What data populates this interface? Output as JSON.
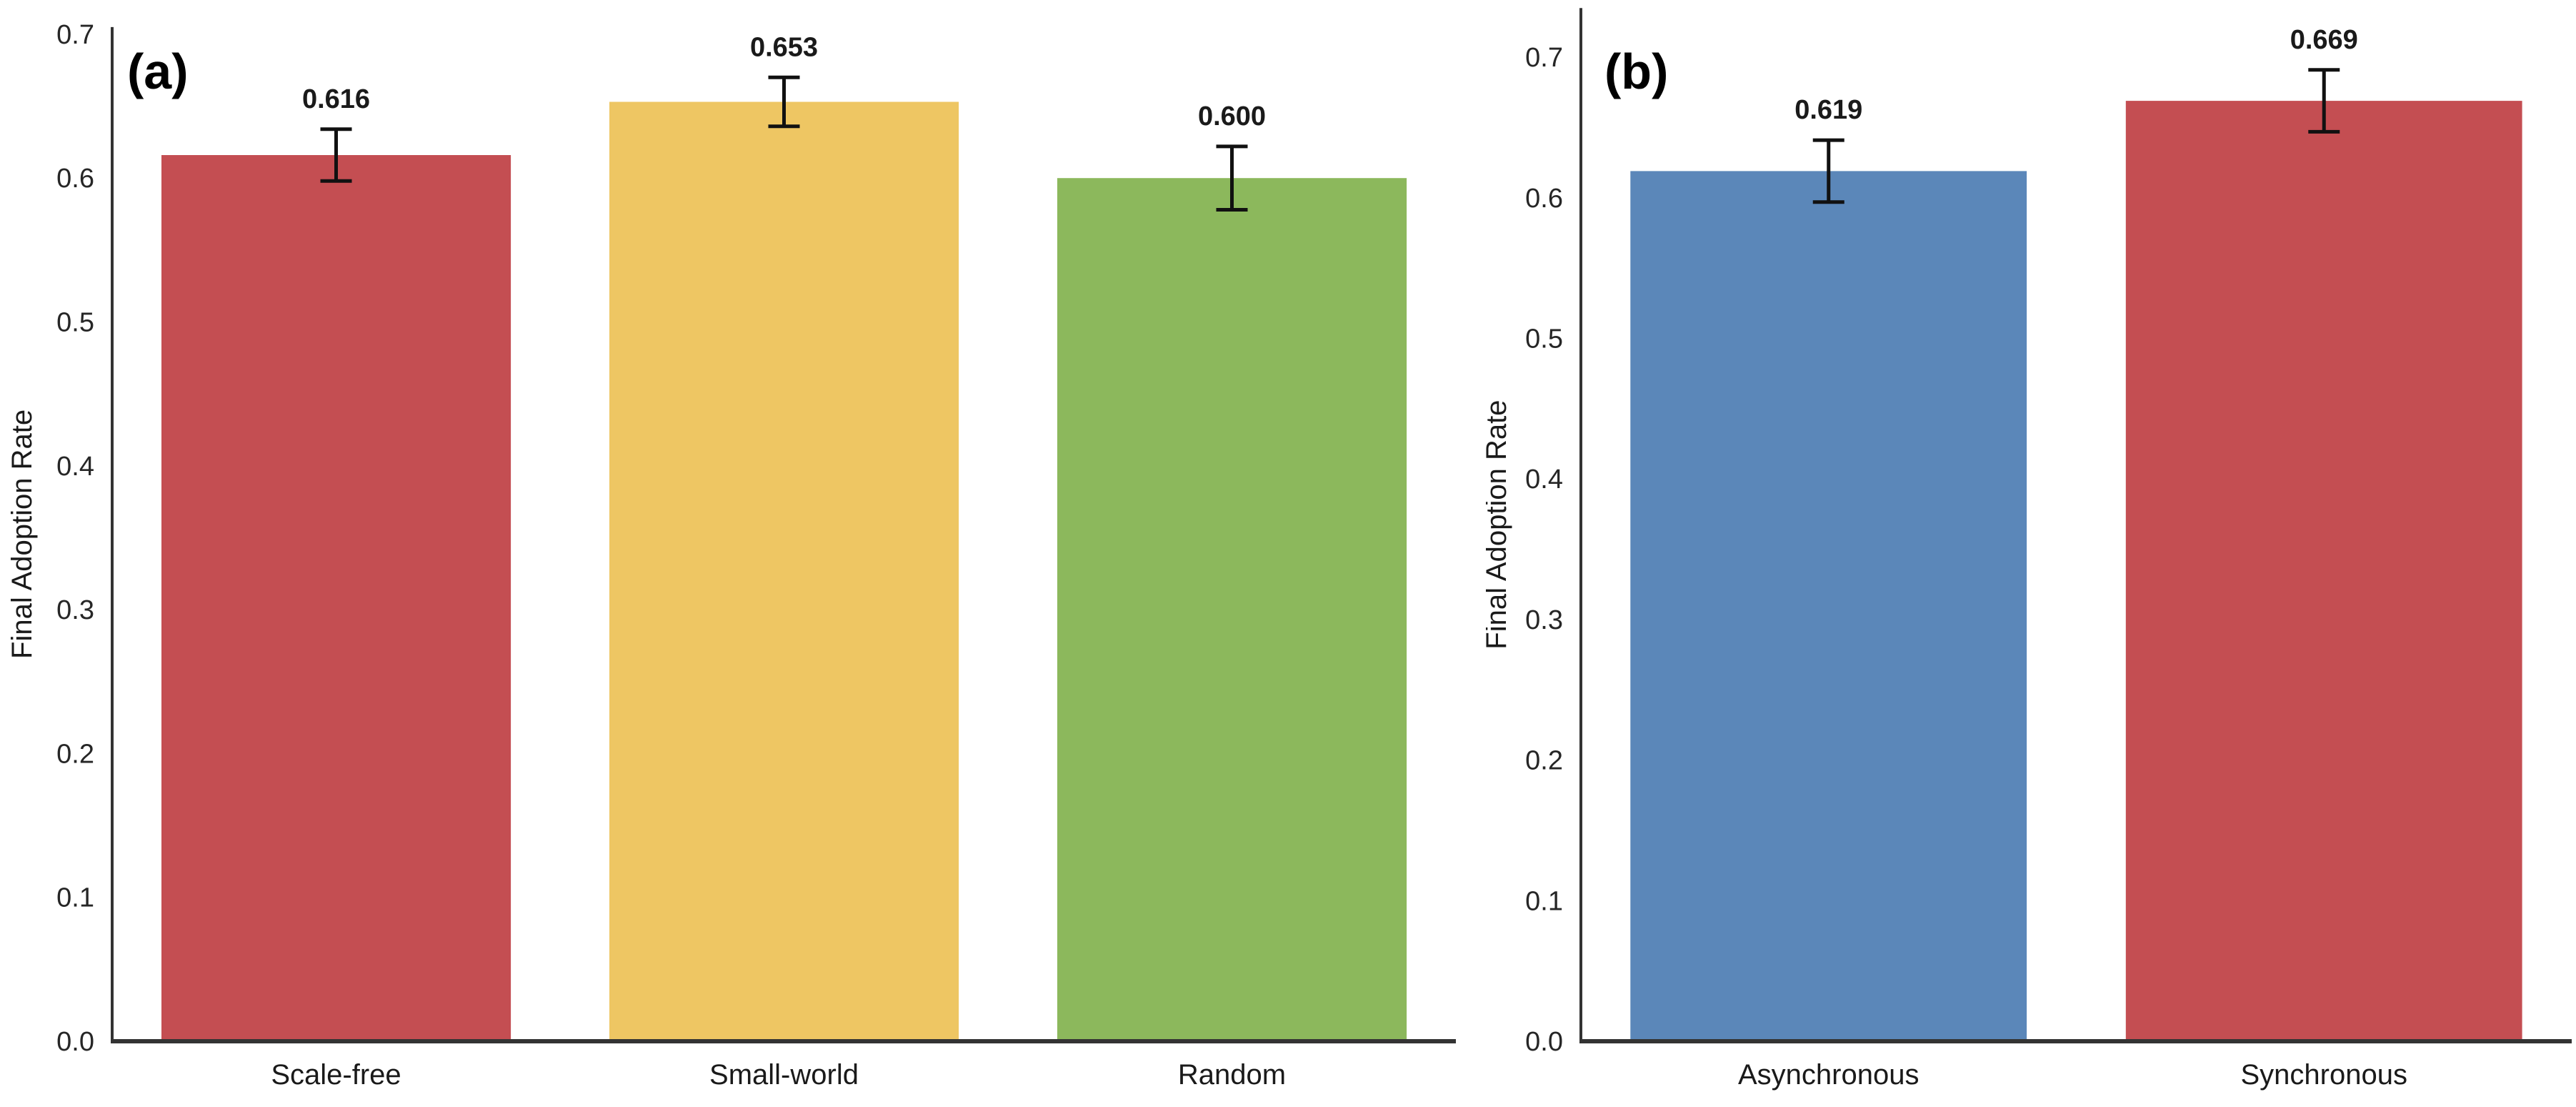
{
  "figure": {
    "background": "#ffffff",
    "text_color": "#1a1a1a",
    "tick_color": "#262626",
    "axis_color": "#333333",
    "error_bar_color": "#111111"
  },
  "chart_data": [
    {
      "type": "bar",
      "panel_label": "(a)",
      "title": "",
      "xlabel": "",
      "ylabel": "Final Adoption Rate",
      "categories": [
        "Scale-free",
        "Small-world",
        "Random"
      ],
      "values": [
        0.616,
        0.653,
        0.6
      ],
      "errors": [
        0.018,
        0.017,
        0.022
      ],
      "value_labels": [
        "0.616",
        "0.653",
        "0.600"
      ],
      "bar_colors": [
        "#C44E52",
        "#EEC663",
        "#8CB85C"
      ],
      "ylim": [
        0,
        0.705
      ],
      "yticks": [
        0.0,
        0.1,
        0.2,
        0.3,
        0.4,
        0.5,
        0.6,
        0.7
      ],
      "ytick_labels": [
        "0.0",
        "0.1",
        "0.2",
        "0.3",
        "0.4",
        "0.5",
        "0.6",
        "0.7"
      ],
      "grid": false,
      "legend": "none"
    },
    {
      "type": "bar",
      "panel_label": "(b)",
      "title": "",
      "xlabel": "",
      "ylabel": "Final Adoption Rate",
      "categories": [
        "Asynchronous",
        "Synchronous"
      ],
      "values": [
        0.619,
        0.669
      ],
      "errors": [
        0.022,
        0.022
      ],
      "value_labels": [
        "0.619",
        "0.669"
      ],
      "bar_colors": [
        "#5B87B9",
        "#C44E52"
      ],
      "ylim": [
        0,
        0.735
      ],
      "yticks": [
        0.0,
        0.1,
        0.2,
        0.3,
        0.4,
        0.5,
        0.6,
        0.7
      ],
      "ytick_labels": [
        "0.0",
        "0.1",
        "0.2",
        "0.3",
        "0.4",
        "0.5",
        "0.6",
        "0.7"
      ],
      "grid": false,
      "legend": "none"
    }
  ]
}
